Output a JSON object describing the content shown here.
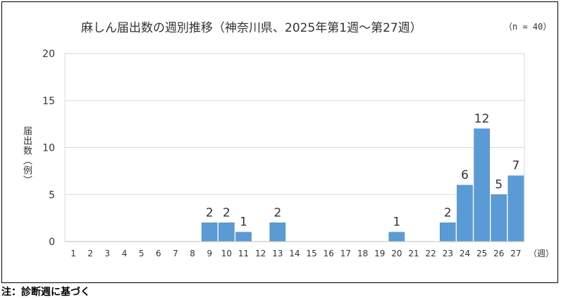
{
  "chart_data": {
    "type": "bar",
    "title": "麻しん届出数の週別推移（神奈川県、2025年第1週～第27週）",
    "n_note": "（n = 40）",
    "ylabel": "届出数（例）",
    "xlabel": "（週）",
    "ylim": [
      0,
      20
    ],
    "yticks": [
      0,
      5,
      10,
      15,
      20
    ],
    "grid": true,
    "bar_color": "#5b9bd5",
    "categories": [
      "1",
      "2",
      "3",
      "4",
      "5",
      "6",
      "7",
      "8",
      "9",
      "10",
      "11",
      "12",
      "13",
      "14",
      "15",
      "16",
      "17",
      "18",
      "19",
      "20",
      "21",
      "22",
      "23",
      "24",
      "25",
      "26",
      "27"
    ],
    "values": [
      0,
      0,
      0,
      0,
      0,
      0,
      0,
      0,
      2,
      2,
      1,
      0,
      2,
      0,
      0,
      0,
      0,
      0,
      0,
      1,
      0,
      0,
      2,
      6,
      12,
      5,
      7
    ]
  },
  "footnote": "注：診断週に基づく"
}
